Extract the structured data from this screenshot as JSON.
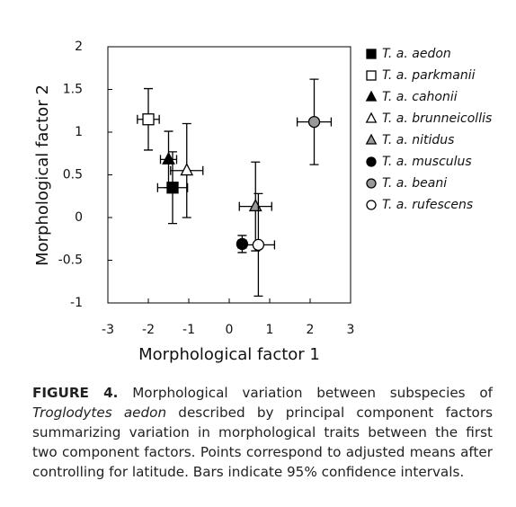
{
  "chart_data": {
    "type": "scatter",
    "x_label": "Morphological factor 1",
    "y_label": "Morphological factor 2",
    "xlim": [
      -3,
      3
    ],
    "xticks": [
      -3,
      -2,
      -1,
      0,
      1,
      2,
      3
    ],
    "ylim": [
      -1,
      2
    ],
    "yticks": [
      -1,
      -0.5,
      0,
      0.5,
      1,
      1.5,
      2
    ],
    "legend": "right",
    "series": [
      {
        "name": "T. a. aedon",
        "marker": "square",
        "color": "#000000",
        "x": [
          -1.4
        ],
        "values": [
          0.35
        ],
        "xerr": [
          0.37
        ],
        "yerr": [
          0.42
        ]
      },
      {
        "name": "T. a. parkmanii",
        "marker": "square",
        "color": "#ffffff",
        "x": [
          -2.0
        ],
        "values": [
          1.15
        ],
        "xerr": [
          0.27
        ],
        "yerr": [
          0.36
        ]
      },
      {
        "name": "T. a. cahonii",
        "marker": "triangle",
        "color": "#000000",
        "x": [
          -1.5
        ],
        "values": [
          0.68
        ],
        "xerr": [
          0.2
        ],
        "yerr": [
          0.33
        ]
      },
      {
        "name": "T. a. brunneicollis",
        "marker": "triangle",
        "color": "#ffffff",
        "x": [
          -1.05
        ],
        "values": [
          0.55
        ],
        "xerr": [
          0.4
        ],
        "yerr": [
          0.55
        ]
      },
      {
        "name": "T. a. nitidus",
        "marker": "triangle",
        "color": "#999999",
        "x": [
          0.65
        ],
        "values": [
          0.13
        ],
        "xerr": [
          0.4
        ],
        "yerr": [
          0.52
        ]
      },
      {
        "name": "T. a. musculus",
        "marker": "circle",
        "color": "#000000",
        "x": [
          0.32
        ],
        "values": [
          -0.31
        ],
        "xerr": [
          0.1
        ],
        "yerr": [
          0.1
        ]
      },
      {
        "name": "T. a. beani",
        "marker": "circle",
        "color": "#999999",
        "x": [
          2.1
        ],
        "values": [
          1.12
        ],
        "xerr": [
          0.42
        ],
        "yerr": [
          0.5
        ]
      },
      {
        "name": "T. a. rufescens",
        "marker": "circle",
        "color": "#ffffff",
        "x": [
          0.72
        ],
        "values": [
          -0.32
        ],
        "xerr": [
          0.4
        ],
        "yerr": [
          0.6
        ]
      }
    ]
  },
  "caption": {
    "label": "FIGURE 4.",
    "parts": [
      "Morphological variation between subspecies of ",
      "Troglodytes aedon",
      " described by principal component factors summarizing variation in morphological traits between the first two component factors. Points correspond to adjusted means after controlling for latitude. Bars indicate 95% confidence intervals."
    ]
  }
}
